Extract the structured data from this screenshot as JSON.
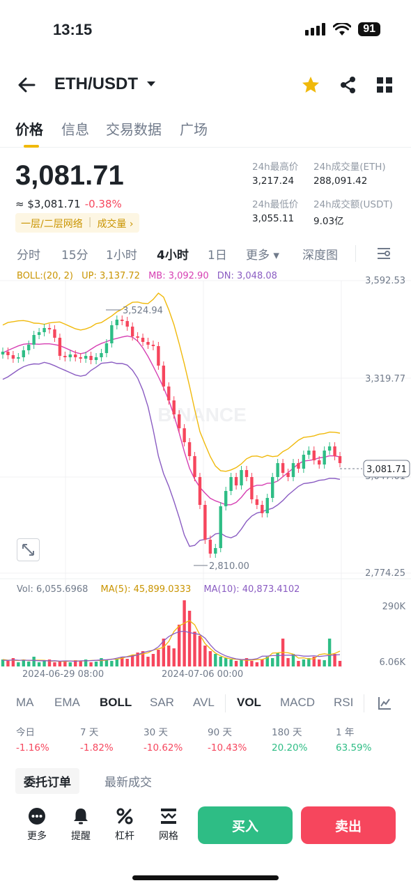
{
  "status": {
    "time": "13:15",
    "battery": "91"
  },
  "header": {
    "pair": "ETH/USDT"
  },
  "tabs": [
    {
      "label": "价格"
    },
    {
      "label": "信息"
    },
    {
      "label": "交易数据"
    },
    {
      "label": "广场"
    }
  ],
  "price": {
    "last": "3,081.71",
    "usd": "≈ $3,081.71",
    "change": "-0.38%",
    "tag_left": "一层/二层网络",
    "tag_right": "成交量 ›"
  },
  "stats": {
    "high_label": "24h最高价",
    "high": "3,217.24",
    "low_label": "24h最低价",
    "low": "3,055.11",
    "vol_eth_label": "24h成交量(ETH)",
    "vol_eth": "288,091.42",
    "vol_usdt_label": "24h成交额(USDT)",
    "vol_usdt": "9.03亿"
  },
  "intervals": [
    {
      "label": "分时"
    },
    {
      "label": "15分"
    },
    {
      "label": "1小时"
    },
    {
      "label": "4小时"
    },
    {
      "label": "1日"
    },
    {
      "label": "更多 ▾"
    },
    {
      "label": "深度图"
    }
  ],
  "chart": {
    "boll_label": "BOLL:(20, 2)",
    "up": "UP: 3,137.72",
    "mb": "MB: 3,092.90",
    "dn": "DN: 3,048.08",
    "axis_top": "3,592.53",
    "axis_mid": "3,319.77",
    "axis_low": "3,047.01",
    "axis_bottom": "2,774.25",
    "current_price": "3,081.71",
    "high_mark": "3,524.94",
    "low_mark": "2,810.00",
    "watermark": "BINANCE",
    "vol_label": "Vol: 6,055.6968",
    "vol_ma5": "MA(5): 45,899.0333",
    "vol_ma10": "MA(10): 40,873.4102",
    "vol_axis_top": "290K",
    "vol_axis_bottom": "6.06K",
    "date_1": "2024-06-29 08:00",
    "date_2": "2024-07-06 00:00",
    "colors": {
      "up": "#2ebd85",
      "down": "#f6465d",
      "boll_up": "#f0b90b",
      "boll_mb": "#d63fb3",
      "boll_dn": "#8a5cc2"
    }
  },
  "indicators": [
    {
      "label": "MA"
    },
    {
      "label": "EMA"
    },
    {
      "label": "BOLL"
    },
    {
      "label": "SAR"
    },
    {
      "label": "AVL"
    },
    {
      "label": "VOL"
    },
    {
      "label": "MACD"
    },
    {
      "label": "RSI"
    }
  ],
  "performance": [
    {
      "label": "今日",
      "value": "-1.16%",
      "dir": "neg"
    },
    {
      "label": "7 天",
      "value": "-1.82%",
      "dir": "neg"
    },
    {
      "label": "30 天",
      "value": "-10.62%",
      "dir": "neg"
    },
    {
      "label": "90 天",
      "value": "-10.43%",
      "dir": "neg"
    },
    {
      "label": "180 天",
      "value": "20.20%",
      "dir": "pos"
    },
    {
      "label": "1 年",
      "value": "63.59%",
      "dir": "pos"
    }
  ],
  "orderbook_tabs": [
    {
      "label": "委托订单"
    },
    {
      "label": "最新成交"
    }
  ],
  "bottom_nav": {
    "more": "更多",
    "alert": "提醒",
    "leverage": "杠杆",
    "grid": "网格",
    "buy": "买入",
    "sell": "卖出"
  }
}
